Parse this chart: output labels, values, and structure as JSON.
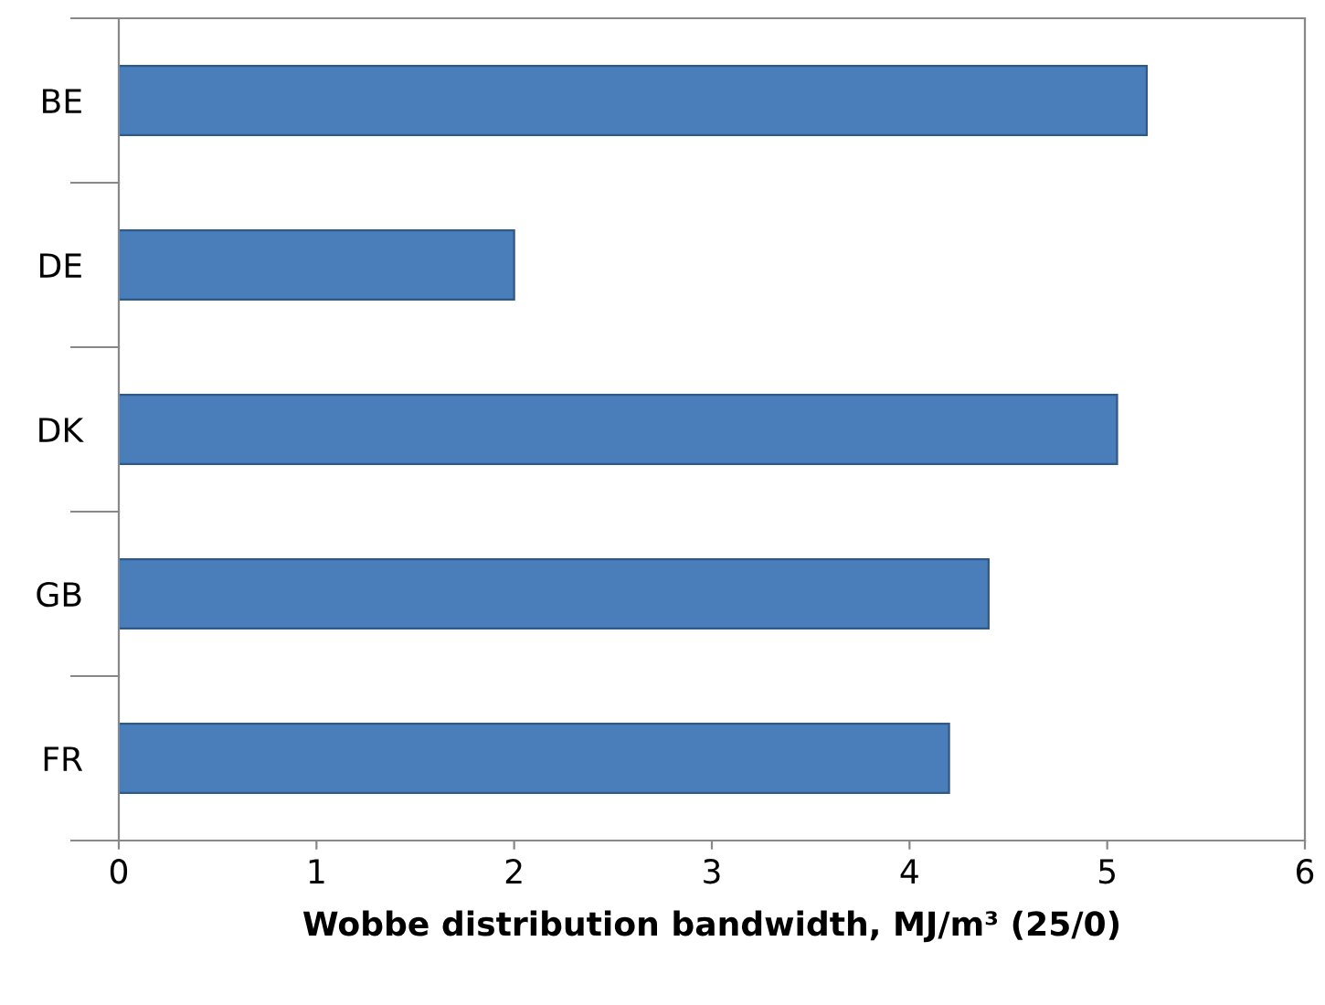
{
  "chart_data": {
    "type": "bar",
    "orientation": "horizontal",
    "categories": [
      "BE",
      "DE",
      "DK",
      "GB",
      "FR"
    ],
    "values": [
      5.2,
      2.0,
      5.05,
      4.4,
      4.2
    ],
    "color": "#4a7ebb",
    "xlabel": "Wobbe distribution bandwidth, MJ/m³ (25/0)",
    "xlim": [
      0,
      6
    ],
    "xticks": [
      0,
      1,
      2,
      3,
      4,
      5,
      6
    ],
    "grid": false,
    "legend": false
  }
}
